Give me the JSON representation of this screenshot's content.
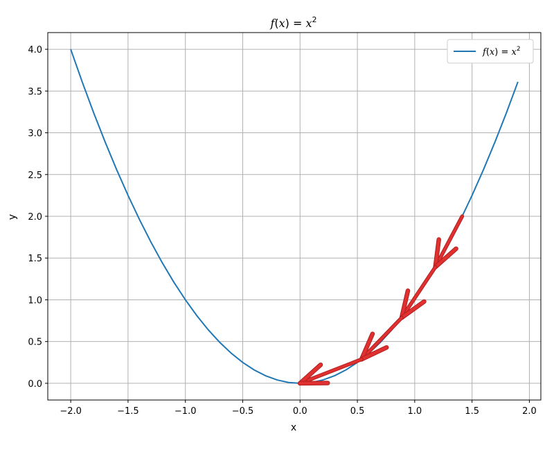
{
  "chart_data": {
    "type": "line",
    "title": "f(x) = x²",
    "title_parts": {
      "fx": "f",
      "paren_open": "(",
      "var": "x",
      "paren_close": ")",
      "eq": " = ",
      "rhs_var": "x",
      "exp": "2"
    },
    "xlabel": "x",
    "ylabel": "y",
    "xlim": [
      -2.2,
      2.1
    ],
    "ylim": [
      -0.2,
      4.2
    ],
    "xticks": [
      -2.0,
      -1.5,
      -1.0,
      -0.5,
      0.0,
      0.5,
      1.0,
      1.5,
      2.0
    ],
    "xtick_labels": [
      "−2.0",
      "−1.5",
      "−1.0",
      "−0.5",
      "0.0",
      "0.5",
      "1.0",
      "1.5",
      "2.0"
    ],
    "yticks": [
      0.0,
      0.5,
      1.0,
      1.5,
      2.0,
      2.5,
      3.0,
      3.5,
      4.0
    ],
    "ytick_labels": [
      "0.0",
      "0.5",
      "1.0",
      "1.5",
      "2.0",
      "2.5",
      "3.0",
      "3.5",
      "4.0"
    ],
    "grid": true,
    "legend": {
      "placement": "upper-right",
      "label_fx": "f",
      "label_var": "x",
      "label_rhs": "x",
      "label_exp": "2"
    },
    "series": [
      {
        "name": "f(x) = x²",
        "color": "#1f77b4",
        "function": "x^2",
        "x_start": -2.0,
        "x_end": 1.9,
        "x_step": 0.1
      }
    ],
    "annotations": {
      "type": "arrows",
      "color": "#e03030",
      "edge_color": "#b02020",
      "points": [
        {
          "x": 1.414,
          "y": 2.0
        },
        {
          "x": 1.18,
          "y": 1.392
        },
        {
          "x": 0.886,
          "y": 0.785
        },
        {
          "x": 0.536,
          "y": 0.287
        },
        {
          "x": 0.0,
          "y": 0.0
        }
      ]
    }
  }
}
